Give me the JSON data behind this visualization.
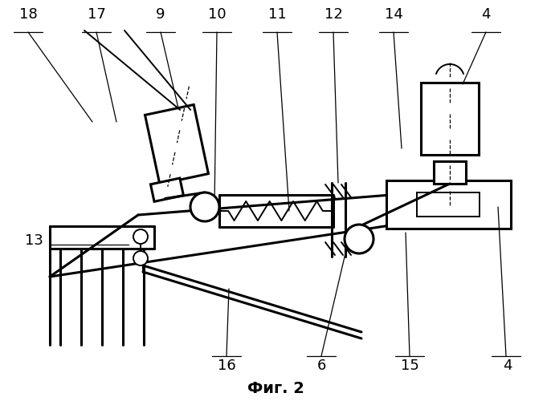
{
  "title": "Фиг. 2",
  "bg_color": "#ffffff",
  "line_color": "#000000",
  "lw_thin": 0.9,
  "lw_med": 1.4,
  "lw_thick": 2.2
}
